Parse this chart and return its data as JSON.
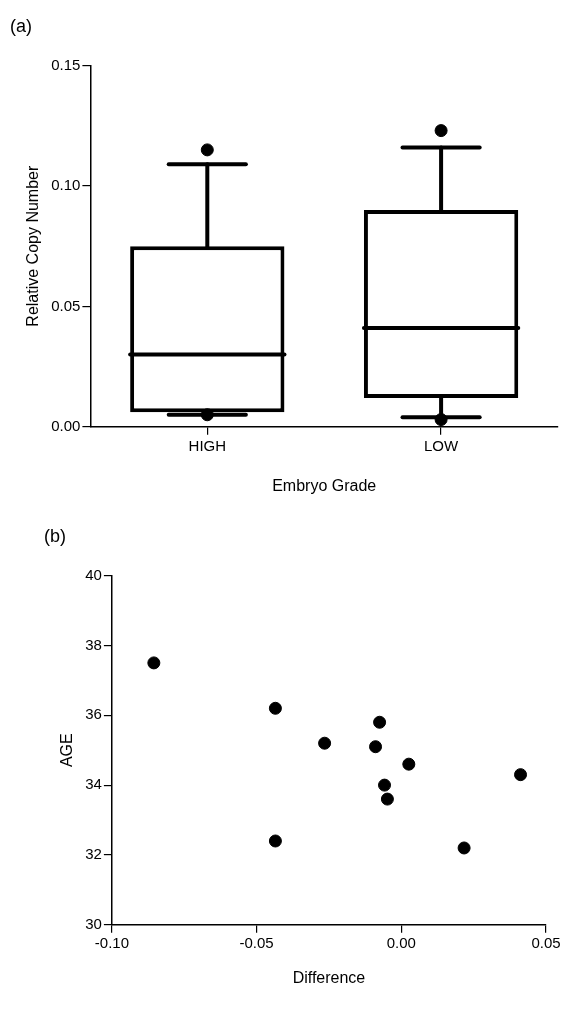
{
  "chart_data": [
    {
      "type": "box",
      "title": "(a)",
      "xlabel": "Embryo Grade",
      "ylabel": "Relative Copy Number",
      "categories": [
        "HIGH",
        "LOW"
      ],
      "color": "#000000",
      "boxes": [
        {
          "low": 0.005,
          "q1": 0.006,
          "median": 0.03,
          "q3": 0.075,
          "high": 0.109,
          "outliers": [
            0.115,
            0.005
          ]
        },
        {
          "low": 0.004,
          "q1": 0.012,
          "median": 0.041,
          "q3": 0.09,
          "high": 0.116,
          "outliers": [
            0.123,
            0.003
          ]
        }
      ],
      "ylim": [
        0,
        0.15
      ],
      "yticks": [
        {
          "value": 0,
          "label": "0.00"
        },
        {
          "value": 0.05,
          "label": "0.05"
        },
        {
          "value": 0.1,
          "label": "0.10"
        },
        {
          "value": 0.15,
          "label": "0.15"
        }
      ],
      "grid": false,
      "marker": "circle"
    },
    {
      "type": "scatter",
      "title": "(b)",
      "xlabel": "Difference",
      "ylabel": "AGE",
      "color": "#000000",
      "marker": "circle",
      "x": [
        -0.0855,
        -0.0435,
        -0.0265,
        -0.0075,
        -0.0089,
        0.0026,
        0.0412,
        -0.0058,
        -0.0048,
        -0.0435,
        0.0217
      ],
      "values": [
        37.5,
        36.2,
        35.2,
        35.8,
        35.1,
        34.6,
        34.3,
        34.0,
        33.6,
        32.4,
        32.2
      ],
      "xlim": [
        -0.1,
        0.05
      ],
      "xticks": [
        {
          "value": -0.1,
          "label": "-0.10"
        },
        {
          "value": -0.05,
          "label": "-0.05"
        },
        {
          "value": 0,
          "label": "0.00"
        },
        {
          "value": 0.05,
          "label": "0.05"
        }
      ],
      "ylim": [
        30,
        40
      ],
      "yticks": [
        30,
        32,
        34,
        36,
        38,
        40
      ],
      "grid": false
    }
  ]
}
